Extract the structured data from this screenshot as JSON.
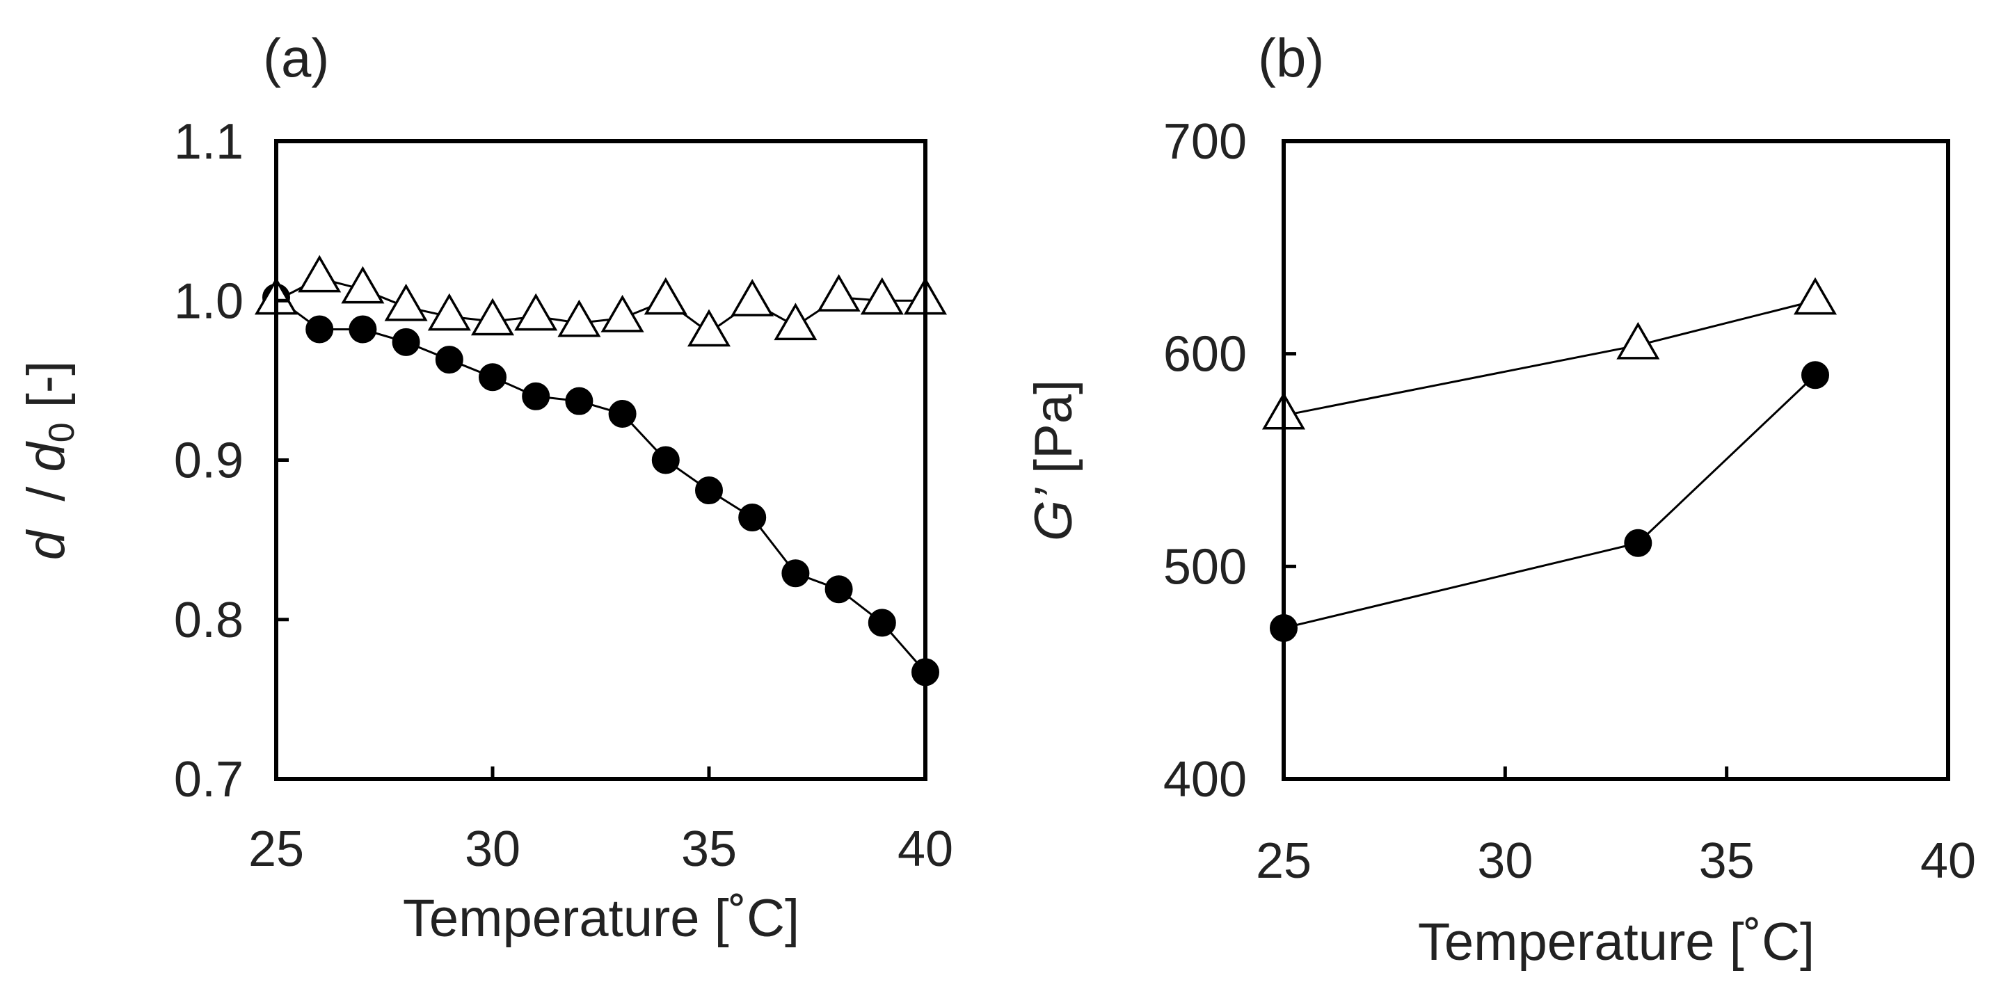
{
  "chart_data": [
    {
      "type": "line",
      "panel_label": "(a)",
      "title": "",
      "xlabel": "Temperature [˚C]",
      "ylabel_parts": [
        "d",
        "  / ",
        "d",
        "0",
        " [-]"
      ],
      "xlim": [
        25,
        40
      ],
      "ylim": [
        0.7,
        1.1
      ],
      "xticks": [
        25,
        30,
        35,
        40
      ],
      "xtick_labels": [
        "25",
        "30",
        "35",
        "40"
      ],
      "yticks": [
        0.7,
        0.8,
        0.9,
        1.0,
        1.1
      ],
      "ytick_labels": [
        "0.7",
        "0.8",
        "0.9",
        "1.0",
        "1.1"
      ],
      "grid": false,
      "series": [
        {
          "name": "filled-circles",
          "marker": "circle-filled",
          "x": [
            25,
            26,
            27,
            28,
            29,
            30,
            31,
            32,
            33,
            34,
            35,
            36,
            37,
            38,
            39,
            40
          ],
          "y": [
            1.002,
            0.982,
            0.982,
            0.974,
            0.963,
            0.952,
            0.94,
            0.937,
            0.929,
            0.9,
            0.881,
            0.864,
            0.829,
            0.819,
            0.798,
            0.767
          ]
        },
        {
          "name": "open-triangles",
          "marker": "triangle-open",
          "x": [
            25,
            26,
            27,
            28,
            29,
            30,
            31,
            32,
            33,
            34,
            35,
            36,
            37,
            38,
            39,
            40
          ],
          "y": [
            1.0,
            1.014,
            1.007,
            0.996,
            0.99,
            0.987,
            0.99,
            0.986,
            0.989,
            1.0,
            0.98,
            0.999,
            0.984,
            1.002,
            1.0,
            1.0
          ]
        }
      ]
    },
    {
      "type": "line",
      "panel_label": "(b)",
      "title": "",
      "xlabel": "Temperature [˚C]",
      "ylabel_parts": [
        "G’",
        " [Pa]"
      ],
      "xlim": [
        25,
        40
      ],
      "ylim": [
        400,
        700
      ],
      "xticks": [
        25,
        30,
        35,
        40
      ],
      "xtick_labels": [
        "25",
        "30",
        "35",
        "40"
      ],
      "yticks": [
        400,
        500,
        600,
        700
      ],
      "ytick_labels": [
        "400",
        "500",
        "600",
        "700"
      ],
      "grid": false,
      "series": [
        {
          "name": "filled-circles",
          "marker": "circle-filled",
          "x": [
            25,
            33,
            37
          ],
          "y": [
            471,
            511,
            590
          ]
        },
        {
          "name": "open-triangles",
          "marker": "triangle-open",
          "x": [
            25,
            33,
            37
          ],
          "y": [
            571,
            604,
            625
          ]
        }
      ]
    }
  ]
}
